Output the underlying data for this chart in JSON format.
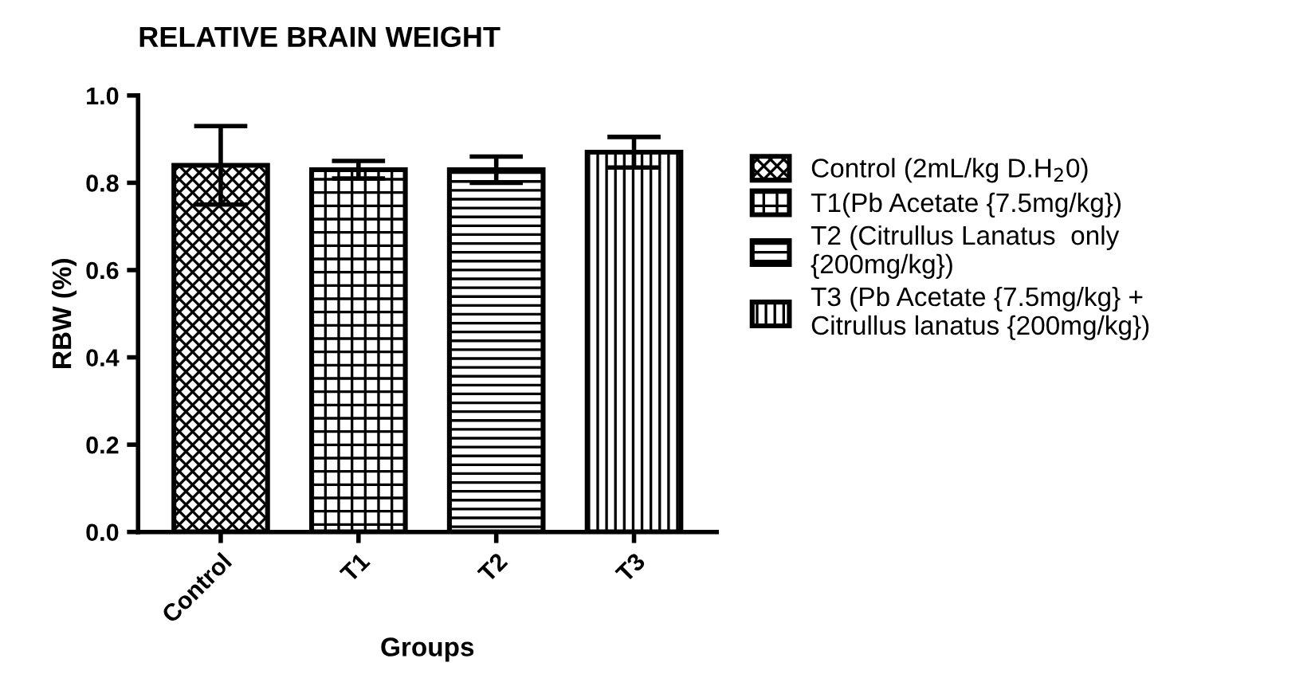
{
  "chart_data": {
    "type": "bar",
    "title": "RELATIVE BRAIN WEIGHT",
    "xlabel": "Groups",
    "ylabel": "RBW (%)",
    "categories": [
      "Control",
      "T1",
      "T2",
      "T3"
    ],
    "series": [
      {
        "name": "Control (2mL/kg D.H$_{2}$0)",
        "color": "#000000",
        "values": [
          0.84,
          null,
          null,
          null
        ],
        "errors": [
          0.09,
          null,
          null,
          null
        ]
      },
      {
        "name": "T1(Pb Acetate {7.5mg/kg})",
        "color": "#000000",
        "values": [
          null,
          0.83,
          null,
          null
        ],
        "errors": [
          null,
          0.02,
          null,
          null
        ]
      },
      {
        "name": "T2 (Citrullus Lanatus  only\n{200mg/kg})",
        "color": "#000000",
        "values": [
          null,
          null,
          0.83,
          null
        ],
        "errors": [
          null,
          null,
          0.03,
          null
        ]
      },
      {
        "name": "T3 (Pb Acetate {7.5mg/kg} +\nCitrullus lanatus {200mg/kg})",
        "color": "#000000",
        "values": [
          null,
          null,
          null,
          0.87
        ],
        "errors": [
          null,
          null,
          null,
          0.035
        ]
      }
    ],
    "ylim": [
      0,
      1
    ],
    "yticks": [
      {
        "value": 0,
        "label": "0.0"
      },
      {
        "value": 0.2,
        "label": "0.2"
      },
      {
        "value": 0.4,
        "label": "0.4"
      },
      {
        "value": 0.6,
        "label": "0.6"
      },
      {
        "value": 0.8,
        "label": "0.8"
      },
      {
        "value": 1,
        "label": "1.0"
      }
    ],
    "grid": false,
    "legend": "right"
  }
}
